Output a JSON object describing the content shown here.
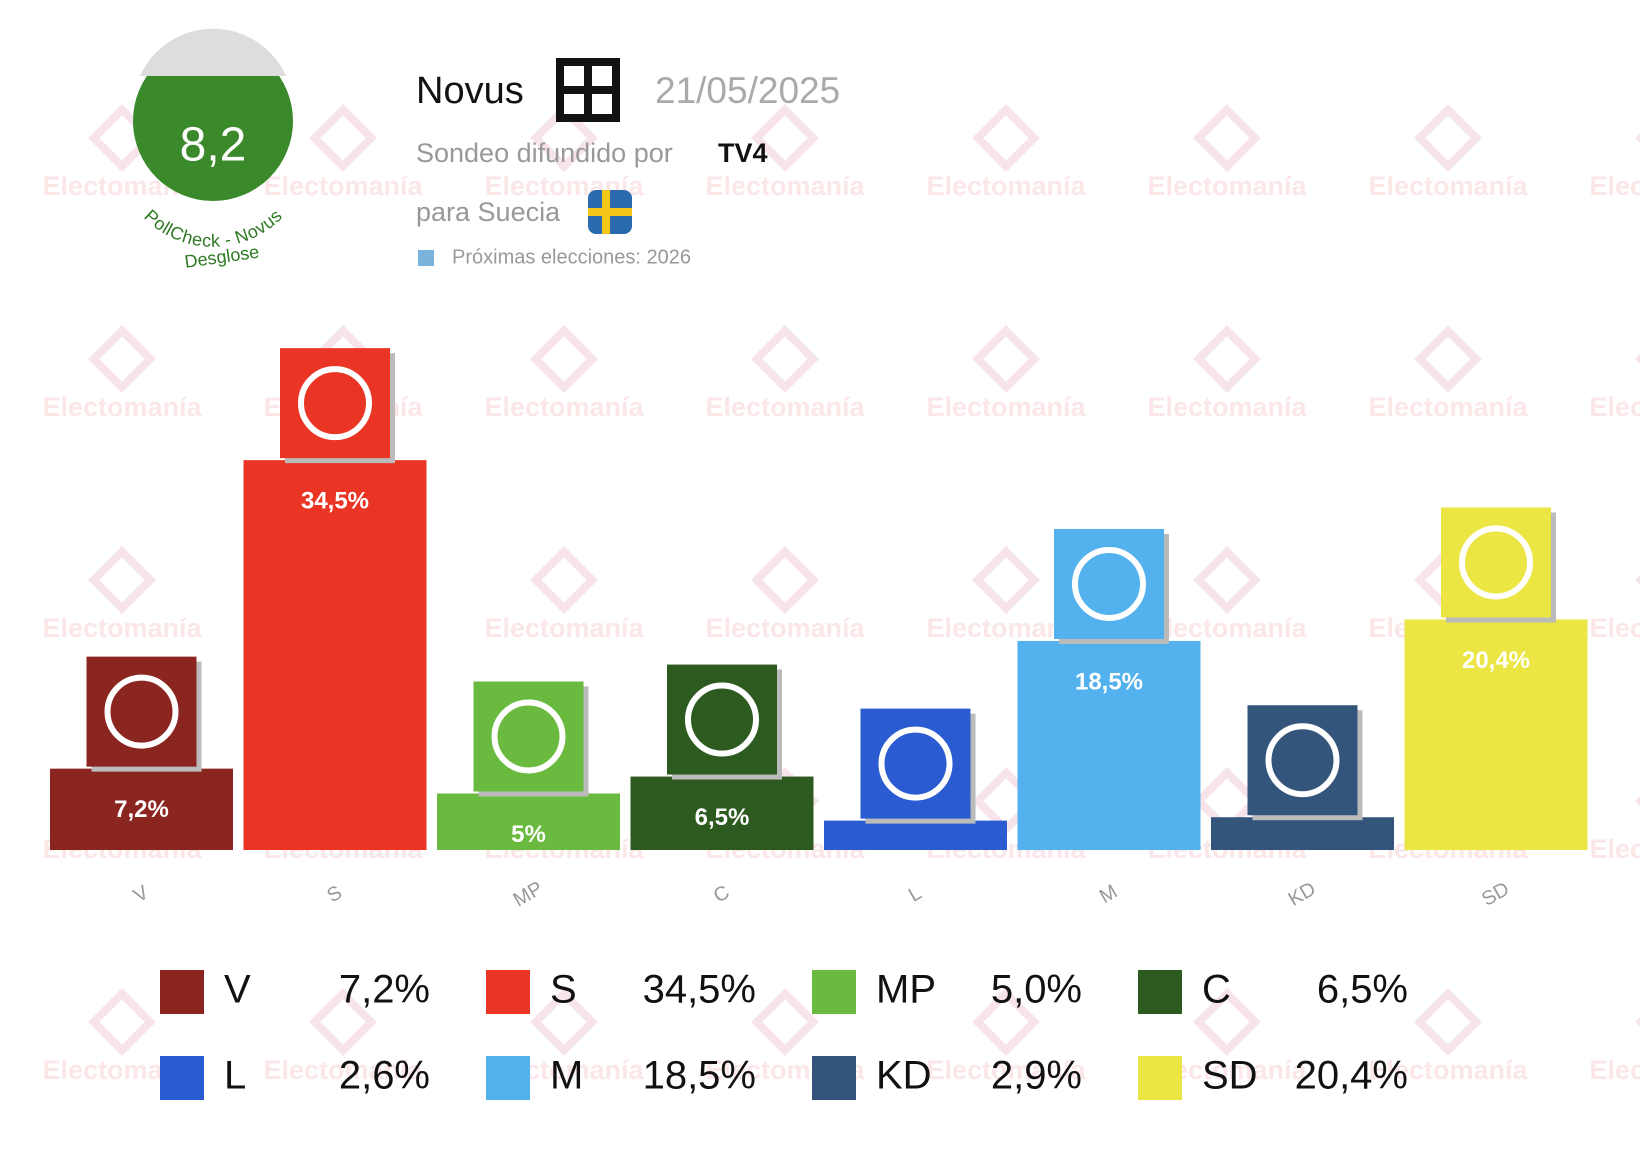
{
  "header": {
    "score": "8,2",
    "pollcheck": "PollCheck - Novus",
    "breakdown": "Desglose",
    "pollster": "Novus",
    "date": "21/05/2025",
    "released_by": "Sondeo difundido por",
    "media": "TV4",
    "country_text": "para Suecia",
    "next_elections": "Próximas elecciones: 2026",
    "watermark": "Electomanía"
  },
  "chart_data": {
    "type": "bar",
    "categories": [
      "V",
      "S",
      "MP",
      "C",
      "L",
      "M",
      "KD",
      "SD"
    ],
    "values": [
      7.2,
      34.5,
      5,
      6.5,
      2.6,
      18.5,
      2.9,
      20.4
    ],
    "value_labels": [
      "7,2%",
      "34,5%",
      "5%",
      "6,5%",
      null,
      "18,5%",
      null,
      "20,4%"
    ],
    "legend_value_labels": [
      "7,2%",
      "34,5%",
      "5,0%",
      "6,5%",
      "2,6%",
      "18,5%",
      "2,9%",
      "20,4%"
    ],
    "colors": [
      "#8b2520",
      "#ea3424",
      "#6aba3f",
      "#2d5a1f",
      "#2a5bd1",
      "#53b2ee",
      "#33557b",
      "#ece644"
    ]
  }
}
